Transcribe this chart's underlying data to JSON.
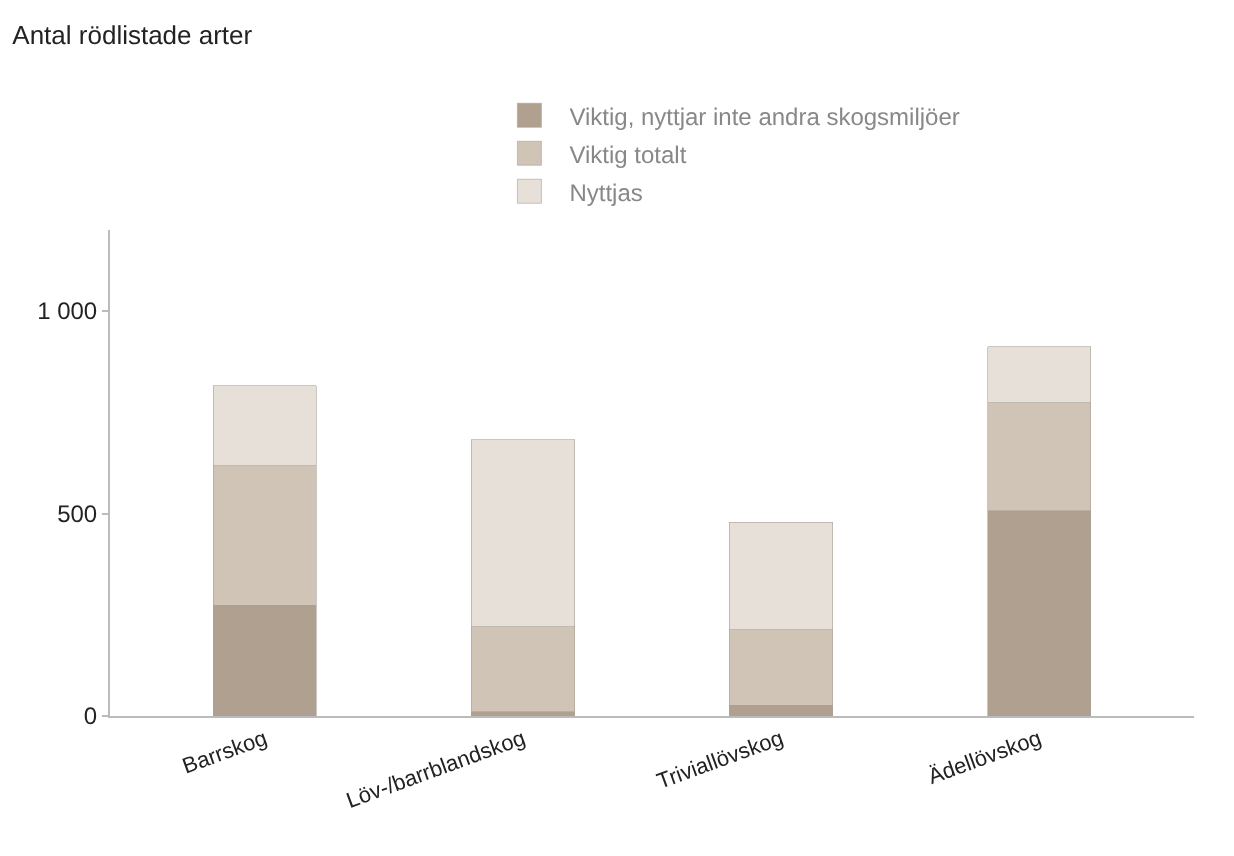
{
  "chart_data": {
    "type": "bar",
    "stacked": true,
    "title": "Antal rödlistade arter",
    "categories": [
      "Barrskog",
      "Löv-/barrblandskog",
      "Triviallövskog",
      "Ädellövskog"
    ],
    "series": [
      {
        "name": "Viktig, nyttjar inte andra skogsmiljöer",
        "color": "#b0a08f",
        "values": [
          273,
          10,
          26,
          507
        ]
      },
      {
        "name": "Viktig totalt",
        "color": "#d0c4b6",
        "values": [
          345,
          210,
          187,
          266
        ]
      },
      {
        "name": "Nyttjas",
        "color": "#e6e0d8",
        "values": [
          197,
          462,
          265,
          139
        ]
      }
    ],
    "ylim": [
      0,
      1200
    ],
    "yticks": [
      0,
      500,
      {
        "value": 1000,
        "label": "1 000"
      }
    ],
    "legend": "top"
  }
}
